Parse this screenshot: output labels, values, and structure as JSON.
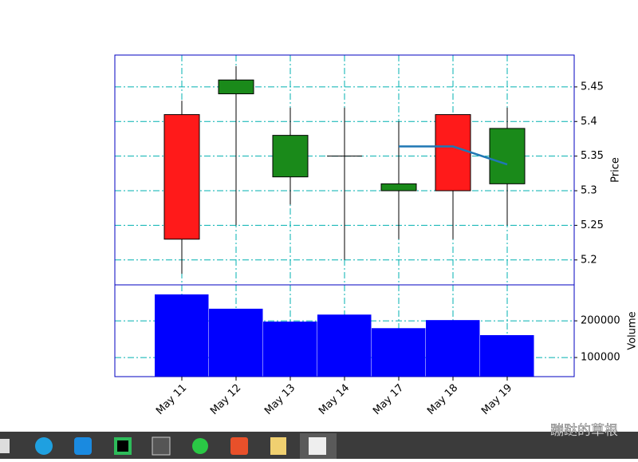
{
  "chart_data": [
    {
      "type": "candlestick",
      "categories": [
        "May 11",
        "May 12",
        "May 13",
        "May 14",
        "May 17",
        "May 18",
        "May 19"
      ],
      "open": [
        5.23,
        5.46,
        5.38,
        5.35,
        5.31,
        5.3,
        5.39
      ],
      "high": [
        5.43,
        5.48,
        5.42,
        5.42,
        5.4,
        5.41,
        5.42
      ],
      "low": [
        5.18,
        5.25,
        5.28,
        5.2,
        5.23,
        5.23,
        5.25
      ],
      "close": [
        5.41,
        5.44,
        5.32,
        5.35,
        5.3,
        5.41,
        5.31
      ],
      "up_color": "#ff1a1a",
      "down_color": "#1a8a1a",
      "moving_average": {
        "color": "#1f77b4",
        "values": [
          null,
          null,
          null,
          null,
          5.364,
          5.364,
          5.338
        ]
      },
      "y_label": "Price",
      "ylim": [
        5.164,
        5.496
      ],
      "yticks": [
        5.2,
        5.25,
        5.3,
        5.35,
        5.4,
        5.45
      ],
      "grid": true
    },
    {
      "type": "bar",
      "categories": [
        "May 11",
        "May 12",
        "May 13",
        "May 14",
        "May 17",
        "May 18",
        "May 19"
      ],
      "values": [
        272000,
        233000,
        198000,
        217000,
        180000,
        202000,
        161000
      ],
      "color": "#0000ff",
      "y_label": "Volume",
      "ylim": [
        48000,
        298000
      ],
      "yticks": [
        100000,
        200000
      ],
      "grid": true
    }
  ],
  "watermark": "蹦跶的草根"
}
